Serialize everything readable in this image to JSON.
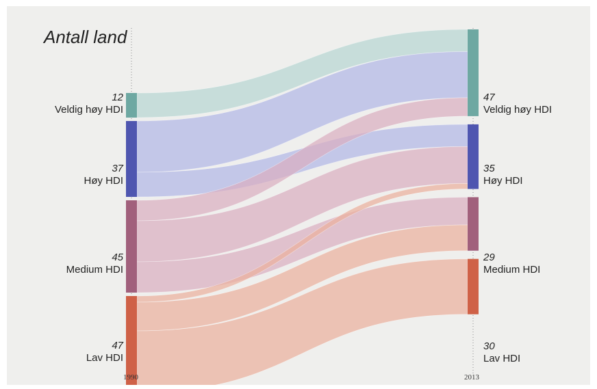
{
  "chart_data": {
    "type": "sankey",
    "title": "Antall land",
    "x_ticks": [
      "1990",
      "2013"
    ],
    "categories": [
      "Veldig høy HDI",
      "Høy HDI",
      "Medium HDI",
      "Lav HDI"
    ],
    "colors": [
      "#6ea8a2",
      "#4f56b0",
      "#a1607c",
      "#cf6147"
    ],
    "link_colors": [
      "#b7d5d3",
      "#b2b7e6",
      "#d9aec1",
      "#eab09e"
    ],
    "left_counts": [
      12,
      37,
      45,
      47
    ],
    "right_counts": [
      47,
      35,
      29,
      30
    ],
    "flows": [
      {
        "from": "Veldig høy HDI",
        "to": "Veldig høy HDI",
        "value": 12
      },
      {
        "from": "Høy HDI",
        "to": "Veldig høy HDI",
        "value": 25
      },
      {
        "from": "Høy HDI",
        "to": "Høy HDI",
        "value": 12
      },
      {
        "from": "Medium HDI",
        "to": "Veldig høy HDI",
        "value": 10
      },
      {
        "from": "Medium HDI",
        "to": "Høy HDI",
        "value": 20
      },
      {
        "from": "Medium HDI",
        "to": "Medium HDI",
        "value": 15
      },
      {
        "from": "Lav HDI",
        "to": "Høy HDI",
        "value": 3
      },
      {
        "from": "Lav HDI",
        "to": "Medium HDI",
        "value": 14
      },
      {
        "from": "Lav HDI",
        "to": "Lav HDI",
        "value": 30
      }
    ],
    "left_labels": [
      {
        "count": "12",
        "name": "Veldig høy HDI"
      },
      {
        "count": "37",
        "name": "Høy HDI"
      },
      {
        "count": "45",
        "name": "Medium HDI"
      },
      {
        "count": "47",
        "name": "Lav HDI"
      }
    ],
    "right_labels": [
      {
        "count": "47",
        "name": "Veldig høy HDI"
      },
      {
        "count": "35",
        "name": "Høy HDI"
      },
      {
        "count": "29",
        "name": "Medium HDI"
      },
      {
        "count": "30",
        "name": "Lav HDI"
      }
    ]
  }
}
